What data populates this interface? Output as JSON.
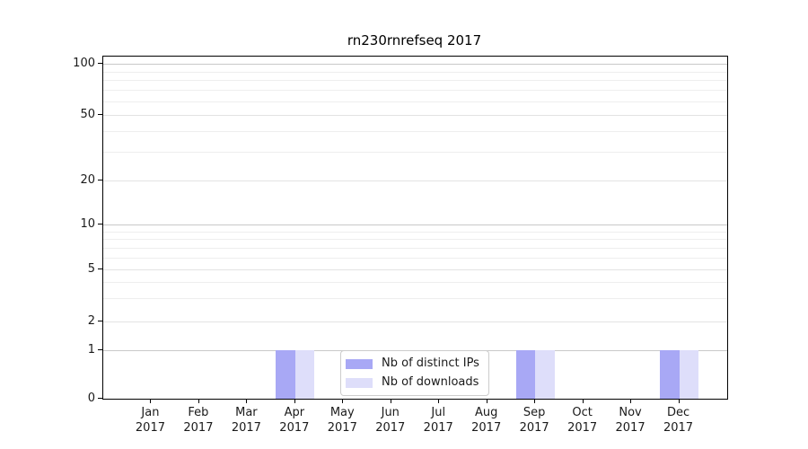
{
  "chart_data": {
    "type": "bar",
    "title": "rn230rnrefseq 2017",
    "categories": [
      "Jan",
      "Feb",
      "Mar",
      "Apr",
      "May",
      "Jun",
      "Jul",
      "Aug",
      "Sep",
      "Oct",
      "Nov",
      "Dec"
    ],
    "year_label": "2017",
    "xlabel": "",
    "ylabel": "",
    "yticks": [
      0,
      1,
      2,
      5,
      10,
      20,
      50,
      100
    ],
    "yscale": "log-like with linear 0-1 segment",
    "ylim": [
      0,
      110
    ],
    "grid": "major and minor horizontal gridlines",
    "legend_position": "inside bottom-center",
    "series": [
      {
        "name": "Nb of distinct IPs",
        "color": "#a8a8f5",
        "values": [
          0,
          0,
          0,
          1,
          0,
          0,
          0,
          0,
          1,
          0,
          0,
          1
        ]
      },
      {
        "name": "Nb of downloads",
        "color": "#dedefa",
        "values": [
          0,
          0,
          0,
          1,
          0,
          0,
          0,
          0,
          1,
          0,
          0,
          1
        ]
      }
    ]
  },
  "colors": {
    "grid_decade": "#c9c9c9",
    "grid_major": "#e3e3e3",
    "grid_minor": "#eeeeee",
    "spine": "#000000",
    "text": "#1a1a1a"
  }
}
